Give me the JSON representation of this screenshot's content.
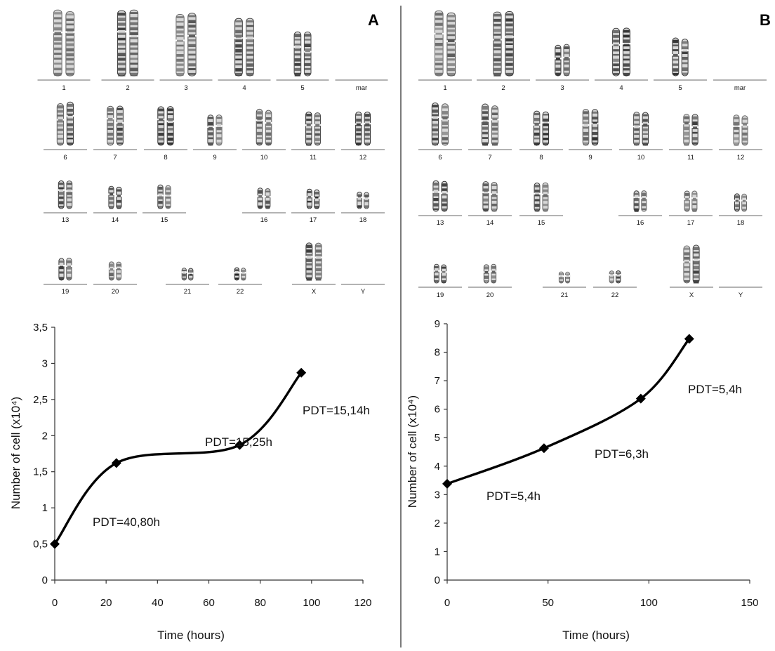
{
  "panels": [
    {
      "letter": "A",
      "karyotype": {
        "rows": [
          [
            "1",
            "2",
            "3",
            "4",
            "5",
            "mar"
          ],
          [
            "6",
            "7",
            "8",
            "9",
            "10",
            "11",
            "12"
          ],
          [
            "13",
            "14",
            "15",
            "16",
            "17",
            "18"
          ],
          [
            "19",
            "20",
            "21",
            "22",
            "X",
            "Y"
          ]
        ],
        "empty_slots": [
          "mar",
          "Y"
        ]
      }
    },
    {
      "letter": "B",
      "karyotype": {
        "rows": [
          [
            "1",
            "2",
            "3",
            "4",
            "5",
            "mar"
          ],
          [
            "6",
            "7",
            "8",
            "9",
            "10",
            "11",
            "12"
          ],
          [
            "13",
            "14",
            "15",
            "16",
            "17",
            "18"
          ],
          [
            "19",
            "20",
            "21",
            "22",
            "X",
            "Y"
          ]
        ],
        "empty_slots": [
          "mar",
          "Y"
        ]
      }
    }
  ],
  "chart_data": [
    {
      "type": "line",
      "panel": "A",
      "x": [
        0,
        24,
        72,
        96
      ],
      "y": [
        0.5,
        1.62,
        1.87,
        2.87
      ],
      "xlabel": "Time (hours)",
      "ylabel": "Number of cell (x10⁴)",
      "xlim": [
        0,
        120
      ],
      "ylim": [
        0,
        3.5
      ],
      "xticks": [
        "0",
        "20",
        "40",
        "60",
        "80",
        "100",
        "120"
      ],
      "yticks": [
        "0",
        "0,5",
        "1",
        "1,5",
        "2",
        "2,5",
        "3",
        "3,5"
      ],
      "annotations": [
        "PDT=40,80h",
        "PDT=15,25h",
        "PDT=15,14h"
      ],
      "marker": "diamond",
      "smooth": true,
      "grid": false
    },
    {
      "type": "line",
      "panel": "B",
      "x": [
        0,
        48,
        96,
        120
      ],
      "y": [
        3.38,
        4.63,
        6.37,
        8.47
      ],
      "xlabel": "Time (hours)",
      "ylabel": "Number of cell (x10⁴)",
      "xlim": [
        0,
        150
      ],
      "ylim": [
        0,
        9
      ],
      "xticks": [
        "0",
        "50",
        "100",
        "150"
      ],
      "yticks": [
        "0",
        "1",
        "2",
        "3",
        "4",
        "5",
        "6",
        "7",
        "8",
        "9"
      ],
      "annotations": [
        "PDT=5,4h",
        "PDT=6,3h",
        "PDT=5,4h"
      ],
      "marker": "diamond",
      "smooth": true,
      "grid": false
    }
  ]
}
